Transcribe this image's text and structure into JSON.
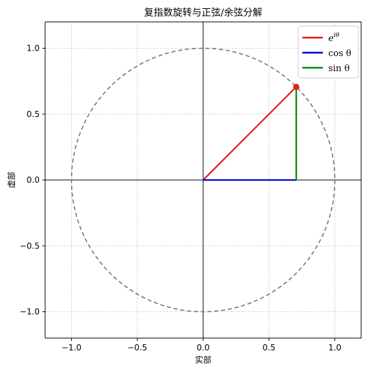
{
  "chart_data": {
    "type": "line",
    "title": "复指数旋转与正弦/余弦分解",
    "xlabel": "实部",
    "ylabel": "虚部",
    "xlim": [
      -1.2,
      1.2
    ],
    "ylim": [
      -1.2,
      1.2
    ],
    "xticks": [
      -1.0,
      -0.5,
      0.0,
      0.5,
      1.0
    ],
    "yticks": [
      -1.0,
      -0.5,
      0.0,
      0.5,
      1.0
    ],
    "xtick_labels": [
      "−1.0",
      "−0.5",
      "0.0",
      "0.5",
      "1.0"
    ],
    "ytick_labels": [
      "−1.0",
      "−0.5",
      "0.0",
      "0.5",
      "1.0"
    ],
    "grid": true,
    "legend_position": "upper right",
    "unit_circle": {
      "radius": 1.0,
      "color": "#777777",
      "style": "dashed"
    },
    "point": {
      "x": 0.707,
      "y": 0.707,
      "color": "#dd2222"
    },
    "series": [
      {
        "name": "e^{iθ}",
        "label_main": "e",
        "label_sup": "iθ",
        "color": "#ee1111",
        "points": [
          [
            0,
            0
          ],
          [
            0.707,
            0.707
          ]
        ]
      },
      {
        "name": "cos θ",
        "label_main": "cos θ",
        "color": "#0000dd",
        "points": [
          [
            0,
            0
          ],
          [
            0.707,
            0
          ]
        ]
      },
      {
        "name": "sin θ",
        "label_main": "sin θ",
        "color": "#008800",
        "points": [
          [
            0.707,
            0
          ],
          [
            0.707,
            0.707
          ]
        ]
      }
    ]
  }
}
